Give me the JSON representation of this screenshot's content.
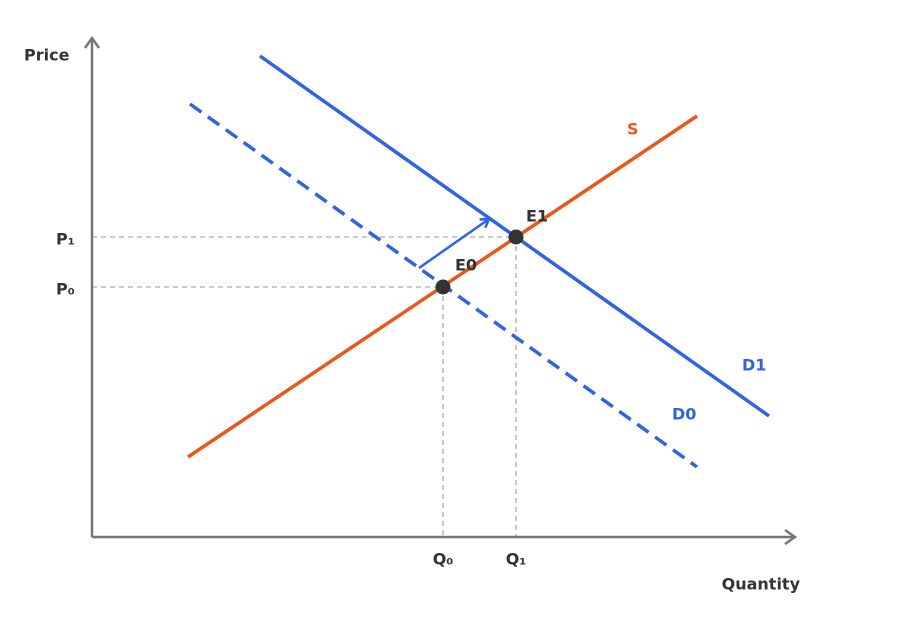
{
  "axes": {
    "y_label": "Price",
    "x_label": "Quantity"
  },
  "price_levels": [
    "P₁",
    "P₀"
  ],
  "quantity_levels": [
    "Q₀",
    "Q₁"
  ],
  "curves": {
    "supply": "S",
    "demand_initial": "D0",
    "demand_new": "D1"
  },
  "equilibria": [
    "E0",
    "E1"
  ]
}
